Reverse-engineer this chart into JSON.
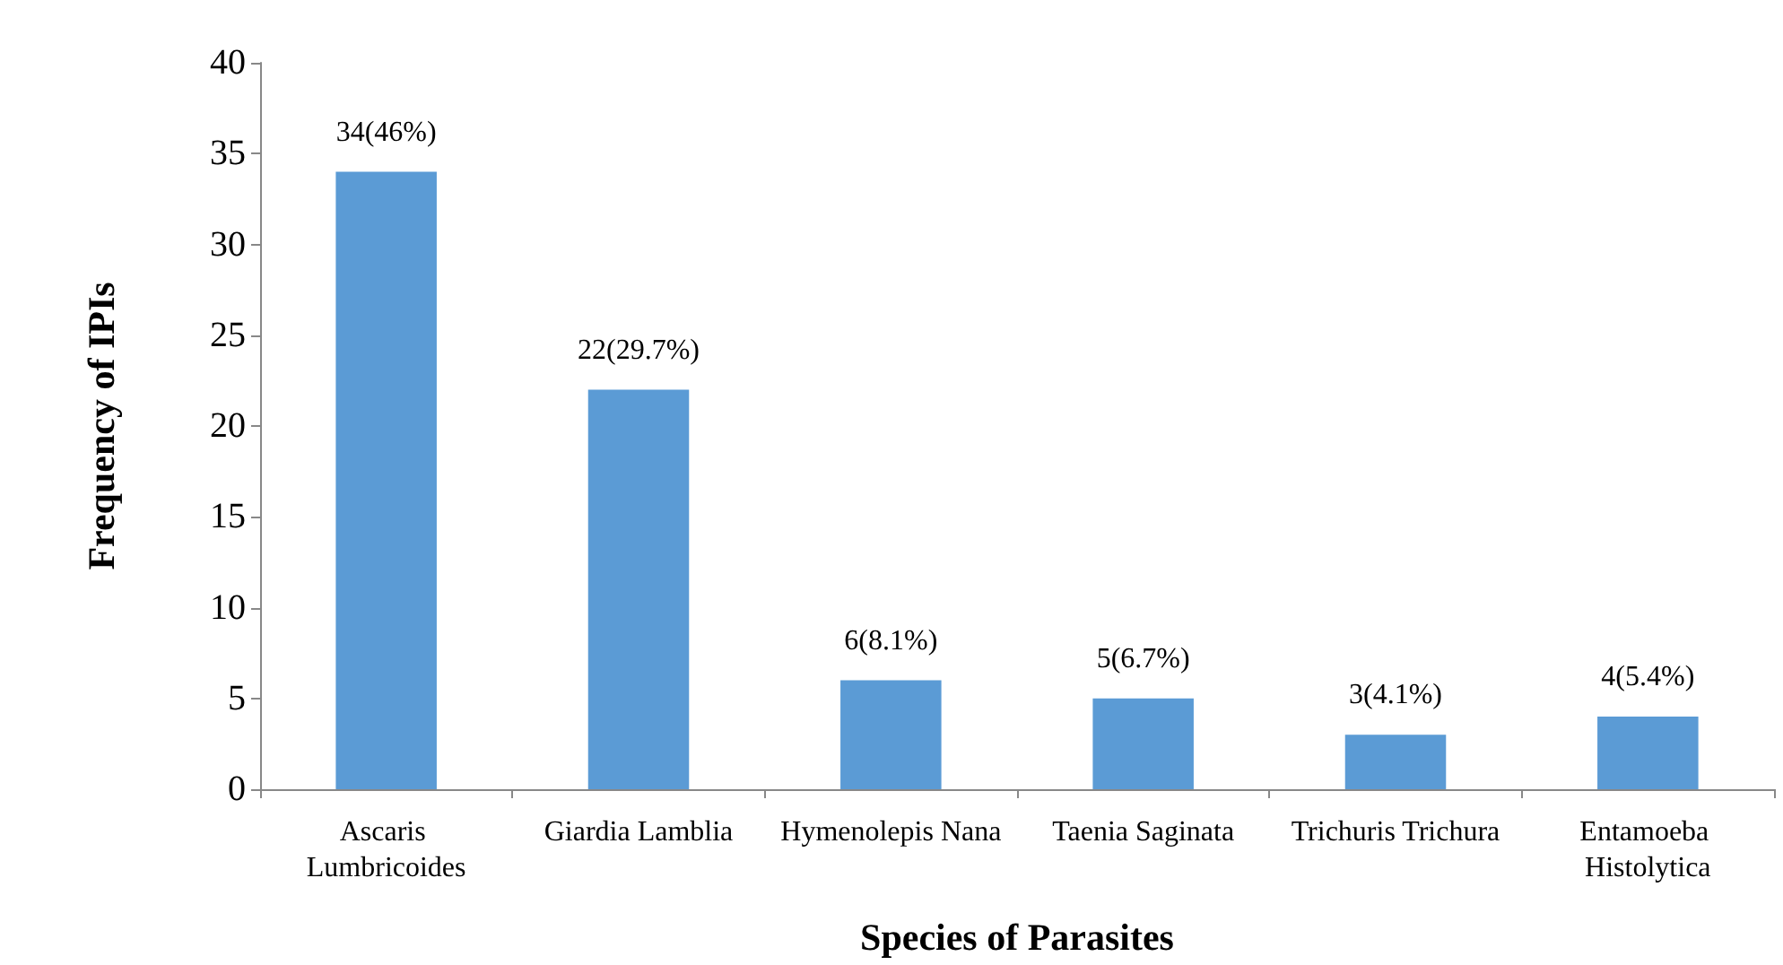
{
  "chart_data": {
    "type": "bar",
    "xlabel": "Species of Parasites",
    "ylabel": "Frequency of IPIs",
    "categories": [
      "Ascaris Lumbricoides",
      "Giardia Lamblia",
      "Hymenolepis Nana",
      "Taenia Saginata",
      "Trichuris Trichura",
      "Entamoeba Histolytica"
    ],
    "values": [
      34,
      22,
      6,
      5,
      3,
      4
    ],
    "value_labels": [
      "34(46%)",
      "22(29.7%)",
      "6(8.1%)",
      "5(6.7%)",
      "3(4.1%)",
      "4(5.4%)"
    ],
    "color": "#5b9bd5",
    "ylim": [
      0,
      40
    ],
    "yticks": [
      0,
      5,
      10,
      15,
      20,
      25,
      30,
      35,
      40
    ]
  }
}
